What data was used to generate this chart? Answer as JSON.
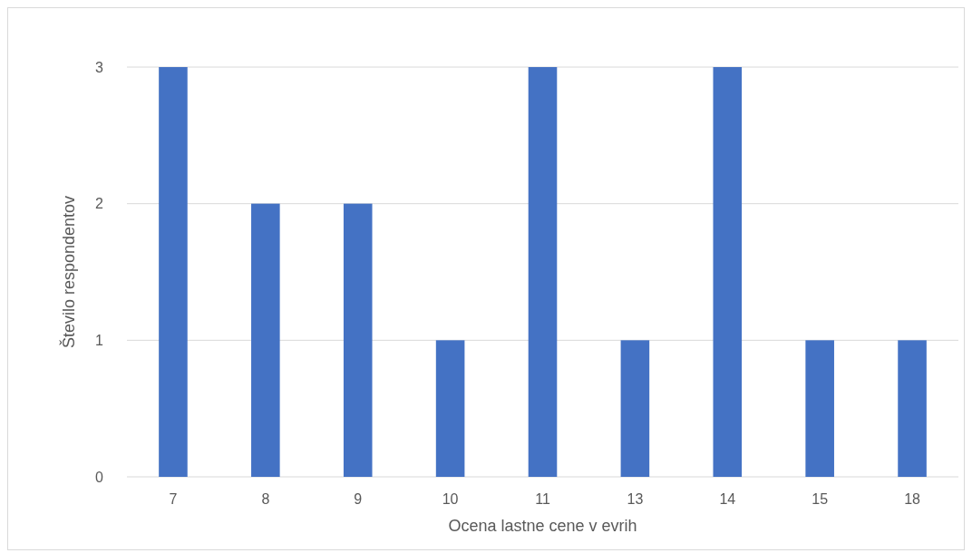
{
  "chart_data": {
    "type": "bar",
    "xlabel": "Ocena lastne cene v evrih",
    "ylabel": "Število respondentov",
    "categories": [
      "7",
      "8",
      "9",
      "10",
      "11",
      "13",
      "14",
      "15",
      "18"
    ],
    "values": [
      3,
      2,
      2,
      1,
      3,
      1,
      3,
      1,
      1
    ],
    "color": "#4472c4",
    "ylim": [
      0,
      3
    ],
    "yticks": [
      0,
      1,
      2,
      3
    ],
    "grid": "y"
  }
}
